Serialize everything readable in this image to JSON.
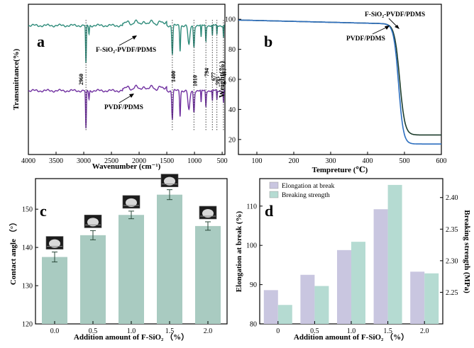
{
  "colors": {
    "teal": "#2e8b7a",
    "purple": "#7030a0",
    "dark_green": "#1d3d2c",
    "blue": "#2d6fbf",
    "bar_fill": "#a9cbc1",
    "elong_fill": "#c9c6e0",
    "break_fill": "#b5dbd2"
  },
  "chart_data": [
    {
      "panel": "a",
      "type": "line",
      "xlabel": "Wavenumber  (cm⁻¹)",
      "ylabel": "Transmittance(%)",
      "xlim": [
        4000,
        450
      ],
      "xticks": [
        "4000",
        "3500",
        "3000",
        "2500",
        "2000",
        "1500",
        "1000",
        "500"
      ],
      "series": [
        {
          "name": "F-SiO₂-PVDF/PDMS",
          "color": "#2e8b7a",
          "offset": 1.0
        },
        {
          "name": "PVDF/PDMS",
          "color": "#7030a0",
          "offset": 0.0
        }
      ],
      "peaks": [
        {
          "wavenumber": 2960,
          "label": "2960"
        },
        {
          "wavenumber": 1400,
          "label": "1400"
        },
        {
          "wavenumber": 1010,
          "label": "1010"
        },
        {
          "wavenumber": 794,
          "label": "794"
        },
        {
          "wavenumber": 677,
          "label": "677"
        },
        {
          "wavenumber": 595,
          "label": "595"
        },
        {
          "wavenumber": 477,
          "label": "477"
        }
      ]
    },
    {
      "panel": "b",
      "type": "line",
      "xlabel": "Tempreture (℃)",
      "ylabel": "Weight(%)",
      "xlim": [
        50,
        600
      ],
      "ylim": [
        10,
        110
      ],
      "xticks": [
        100,
        200,
        300,
        400,
        500,
        600
      ],
      "yticks": [
        20,
        40,
        60,
        80,
        100
      ],
      "series": [
        {
          "name": "F-SiO₂-PVDF/PDMS",
          "color": "#1d3d2c",
          "residue": 23
        },
        {
          "name": "PVDF/PDMS",
          "color": "#2d6fbf",
          "residue": 17
        }
      ]
    },
    {
      "panel": "c",
      "type": "bar",
      "xlabel": "Addition amount of F-SiO₂ （%）",
      "ylabel": "Contact angle （°）",
      "categories": [
        "0.0",
        "0.5",
        "1.0",
        "1.5",
        "2.0"
      ],
      "values": [
        137.5,
        143.2,
        148.5,
        153.8,
        145.6
      ],
      "errors": [
        1.3,
        1.2,
        1.0,
        1.3,
        1.1
      ],
      "ylim": [
        120,
        158
      ],
      "yticks": [
        120,
        130,
        140,
        150
      ]
    },
    {
      "panel": "d",
      "type": "bar",
      "xlabel": "Addition amount of F-SiO₂ （%）",
      "ylabel": "Elongation at break  (%)",
      "y2label": "Breaking strength  (MPa)",
      "categories": [
        "0",
        "0.5",
        "1.0",
        "1.5",
        "2.0"
      ],
      "series": [
        {
          "name": "Elongation at break",
          "axis": "left",
          "values": [
            88.6,
            92.5,
            98.8,
            109.2,
            93.3
          ]
        },
        {
          "name": "Breaking strength",
          "axis": "right",
          "values": [
            2.23,
            2.26,
            2.33,
            2.42,
            2.28
          ]
        }
      ],
      "ylim": [
        80,
        117
      ],
      "yticks": [
        80,
        90,
        100,
        110
      ],
      "y2lim": [
        2.2,
        2.43
      ],
      "y2ticks": [
        "2.25",
        "2.30",
        "2.35",
        "2.40"
      ]
    }
  ]
}
